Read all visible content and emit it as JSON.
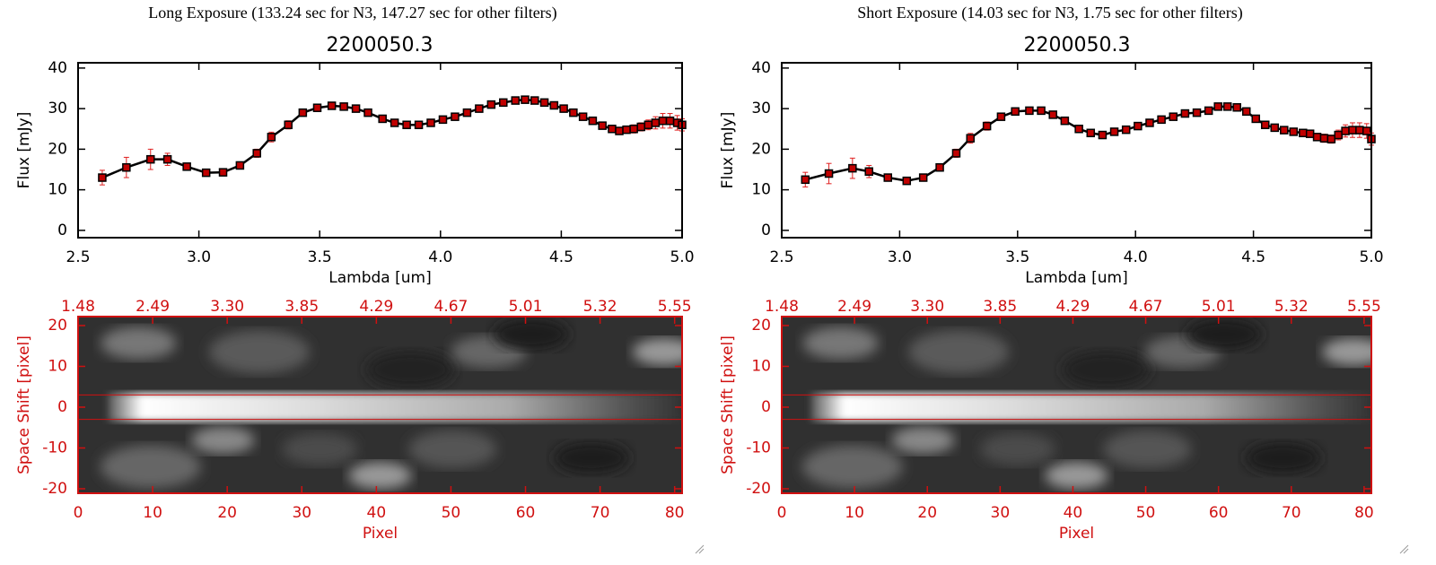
{
  "chart_data": [
    {
      "type": "line",
      "heading": "Long Exposure (133.24 sec for N3, 147.27 sec for other filters)",
      "title": "2200050.3",
      "xlabel": "Lambda [um]",
      "ylabel": "Flux [mJy]",
      "x": [
        2.6,
        2.7,
        2.8,
        2.87,
        2.95,
        3.03,
        3.1,
        3.17,
        3.24,
        3.3,
        3.37,
        3.43,
        3.49,
        3.55,
        3.6,
        3.65,
        3.7,
        3.76,
        3.81,
        3.86,
        3.91,
        3.96,
        4.01,
        4.06,
        4.11,
        4.16,
        4.21,
        4.26,
        4.31,
        4.35,
        4.39,
        4.43,
        4.47,
        4.51,
        4.55,
        4.59,
        4.63,
        4.67,
        4.71,
        4.74,
        4.77,
        4.8,
        4.83,
        4.86,
        4.89,
        4.92,
        4.95,
        4.98,
        5.0
      ],
      "values": [
        13,
        15.5,
        17.5,
        17.5,
        15.7,
        14.2,
        14.3,
        16,
        19,
        23,
        26,
        29,
        30.2,
        30.7,
        30.5,
        30,
        29,
        27.5,
        26.5,
        26,
        26,
        26.5,
        27.3,
        28,
        29,
        30,
        31,
        31.5,
        32,
        32.2,
        32,
        31.5,
        30.8,
        30,
        29,
        28,
        27,
        25.8,
        25,
        24.5,
        24.8,
        25,
        25.5,
        26,
        26.5,
        27,
        27,
        26.5,
        26
      ],
      "errors": [
        1.8,
        2.5,
        2.5,
        1.5,
        0.6,
        0.6,
        0.8,
        0.9,
        1,
        1.2,
        1,
        0.6,
        0.5,
        0.5,
        0.5,
        0.5,
        0.5,
        0.5,
        0.5,
        0.5,
        0.5,
        0.5,
        0.5,
        0.5,
        0.5,
        0.5,
        0.5,
        0.5,
        0.5,
        0.5,
        0.5,
        0.5,
        0.5,
        0.5,
        0.5,
        0.5,
        0.5,
        0.5,
        0.5,
        0.6,
        0.8,
        1,
        1,
        1.2,
        1.5,
        1.8,
        1.8,
        1.8,
        1.5
      ],
      "color": "#000000",
      "error_color": "#e02020",
      "marker_color": "#c00000",
      "xlim": [
        2.5,
        5.0
      ],
      "xticks": [
        2.5,
        {
          "value": 3,
          "label": "3.0"
        },
        3.5,
        {
          "value": 4,
          "label": "4.0"
        },
        4.5,
        {
          "value": 5,
          "label": "5.0"
        }
      ],
      "ylim": [
        -1.8,
        41.3
      ],
      "yticks": [
        0,
        10,
        20,
        30,
        40
      ]
    },
    {
      "type": "image",
      "xlabel": "Pixel",
      "ylabel": "Space Shift [pixel]",
      "color": "#d01010",
      "xlim": [
        0,
        81
      ],
      "xticks": [
        0,
        10,
        20,
        30,
        40,
        50,
        60,
        70,
        80
      ],
      "x2ticks": [
        1.48,
        2.49,
        {
          "value": 3.3,
          "label": "3.30"
        },
        3.85,
        4.29,
        4.67,
        5.01,
        5.32,
        5.55
      ],
      "ylim": [
        -21.1,
        22.2
      ],
      "yticks": [
        -20,
        -10,
        0,
        10,
        20
      ],
      "aperture": [
        -3,
        3
      ]
    },
    {
      "type": "line",
      "heading": "Short Exposure (14.03 sec for N3, 1.75 sec for other filters)",
      "title": "2200050.3",
      "xlabel": "Lambda [um]",
      "ylabel": "Flux [mJy]",
      "x": [
        2.6,
        2.7,
        2.8,
        2.87,
        2.95,
        3.03,
        3.1,
        3.17,
        3.24,
        3.3,
        3.37,
        3.43,
        3.49,
        3.55,
        3.6,
        3.65,
        3.7,
        3.76,
        3.81,
        3.86,
        3.91,
        3.96,
        4.01,
        4.06,
        4.11,
        4.16,
        4.21,
        4.26,
        4.31,
        4.35,
        4.39,
        4.43,
        4.47,
        4.51,
        4.55,
        4.59,
        4.63,
        4.67,
        4.71,
        4.74,
        4.77,
        4.8,
        4.83,
        4.86,
        4.89,
        4.92,
        4.95,
        4.98,
        5.0
      ],
      "values": [
        12.5,
        14,
        15.3,
        14.5,
        13,
        12.2,
        13,
        15.5,
        19,
        22.7,
        25.7,
        28,
        29.3,
        29.5,
        29.5,
        28.5,
        27,
        25,
        24,
        23.5,
        24.3,
        24.8,
        25.7,
        26.5,
        27.3,
        28,
        28.8,
        29,
        29.5,
        30.5,
        30.5,
        30.3,
        29.3,
        27.5,
        26,
        25.3,
        24.7,
        24.3,
        24,
        23.8,
        23,
        22.7,
        22.5,
        23.5,
        24.5,
        24.7,
        24.7,
        24.5,
        22.5
      ],
      "errors": [
        1.8,
        2.5,
        2.5,
        1.5,
        0.6,
        0.6,
        0.8,
        0.9,
        1,
        1.2,
        1,
        0.6,
        0.5,
        0.5,
        0.5,
        0.5,
        0.5,
        0.5,
        0.5,
        0.5,
        0.5,
        0.5,
        0.5,
        0.5,
        0.5,
        0.5,
        0.5,
        0.5,
        0.5,
        0.5,
        0.5,
        0.5,
        0.5,
        0.5,
        0.5,
        0.5,
        0.5,
        0.5,
        0.5,
        0.6,
        0.8,
        1,
        1,
        1.2,
        1.5,
        1.8,
        1.8,
        1.8,
        1.5
      ],
      "color": "#000000",
      "error_color": "#e02020",
      "marker_color": "#c00000",
      "xlim": [
        2.5,
        5.0
      ],
      "xticks": [
        2.5,
        {
          "value": 3,
          "label": "3.0"
        },
        3.5,
        {
          "value": 4,
          "label": "4.0"
        },
        4.5,
        {
          "value": 5,
          "label": "5.0"
        }
      ],
      "ylim": [
        -1.8,
        41.3
      ],
      "yticks": [
        0,
        10,
        20,
        30,
        40
      ]
    },
    {
      "type": "image",
      "xlabel": "Pixel",
      "ylabel": "Space Shift [pixel]",
      "color": "#d01010",
      "xlim": [
        0,
        81
      ],
      "xticks": [
        0,
        10,
        20,
        30,
        40,
        50,
        60,
        70,
        80
      ],
      "x2ticks": [
        1.48,
        2.49,
        {
          "value": 3.3,
          "label": "3.30"
        },
        3.85,
        4.29,
        4.67,
        5.01,
        5.32,
        5.55
      ],
      "ylim": [
        -21.1,
        22.2
      ],
      "yticks": [
        -20,
        -10,
        0,
        10,
        20
      ],
      "aperture": [
        -3,
        3
      ]
    }
  ]
}
